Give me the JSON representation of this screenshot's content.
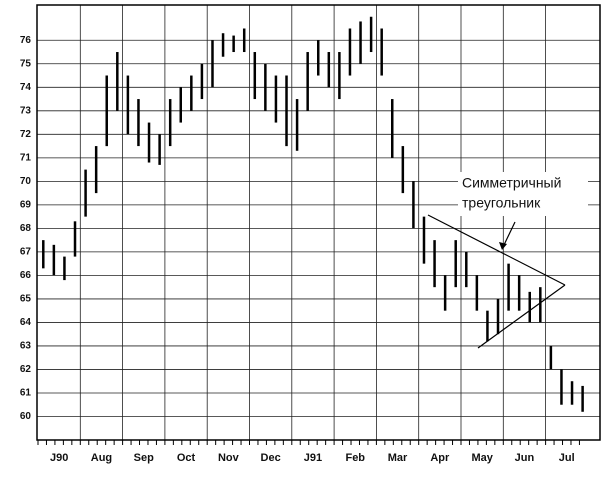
{
  "chart_data": {
    "type": "range-bar",
    "categories": [
      "J90",
      "Aug",
      "Sep",
      "Oct",
      "Nov",
      "Dec",
      "J91",
      "Feb",
      "Mar",
      "Apr",
      "May",
      "Jun",
      "Jul"
    ],
    "high": [
      [
        67.5,
        67.3,
        66.8,
        68.3
      ],
      [
        70.5,
        71.5,
        74.5,
        75.5
      ],
      [
        74.5,
        73.5,
        72.5,
        72.0
      ],
      [
        73.5,
        74.0,
        74.5,
        75.0
      ],
      [
        76.0,
        76.3,
        76.2,
        76.5
      ],
      [
        75.5,
        75.0,
        74.5,
        74.5
      ],
      [
        73.5,
        75.5,
        76.0,
        75.5
      ],
      [
        75.5,
        76.5,
        76.8,
        77.0
      ],
      [
        76.5,
        73.5,
        71.5,
        70.0
      ],
      [
        68.5,
        67.5,
        66.0,
        67.5
      ],
      [
        67.0,
        66.0,
        64.5,
        65.0
      ],
      [
        66.5,
        66.0,
        65.3,
        65.5
      ],
      [
        63.0,
        62.0,
        61.5,
        61.3
      ]
    ],
    "low": [
      [
        66.3,
        66.0,
        65.8,
        66.8
      ],
      [
        68.5,
        69.5,
        71.5,
        73.0
      ],
      [
        72.0,
        71.5,
        70.8,
        70.7
      ],
      [
        71.5,
        72.5,
        73.0,
        73.5
      ],
      [
        74.0,
        75.3,
        75.5,
        75.5
      ],
      [
        73.5,
        73.0,
        72.5,
        71.5
      ],
      [
        71.3,
        73.0,
        74.5,
        74.0
      ],
      [
        73.5,
        74.5,
        75.0,
        75.5
      ],
      [
        74.5,
        71.0,
        69.5,
        68.0
      ],
      [
        66.5,
        65.5,
        64.5,
        65.5
      ],
      [
        65.5,
        64.5,
        63.2,
        63.5
      ],
      [
        64.5,
        64.5,
        64.0,
        64.0
      ],
      [
        62.0,
        60.5,
        60.5,
        60.2
      ]
    ],
    "color": "#000000",
    "ylim": [
      59,
      77.5
    ],
    "yticks": [
      60,
      61,
      62,
      63,
      64,
      65,
      66,
      67,
      68,
      69,
      70,
      71,
      72,
      73,
      74,
      75,
      76
    ],
    "grid": true,
    "annotation": [
      "Симметричный",
      "треугольник"
    ]
  }
}
